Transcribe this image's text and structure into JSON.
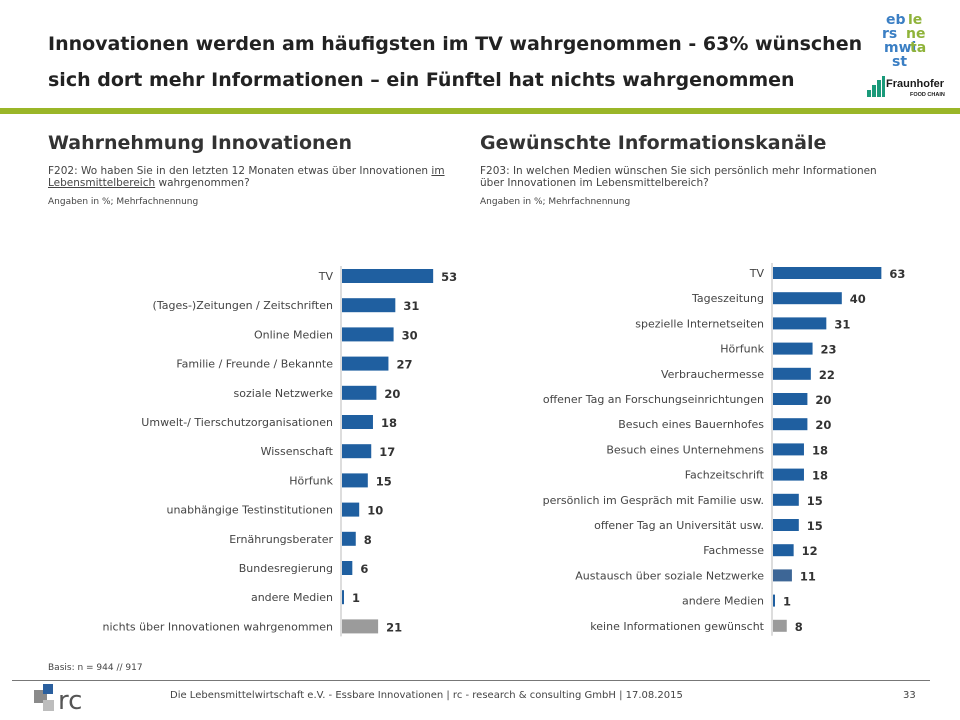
{
  "header": {
    "headline_line1": "Innovationen werden am häufigsten im TV wahrgenommen - 63% wünschen",
    "headline_line2": "sich dort mehr Informationen – ein Fünftel hat nichts wahrgenommen",
    "logo_ebi_lines": [
      "eb",
      "le",
      "rs",
      "ne",
      "mwi",
      "ta",
      "st"
    ],
    "logo_fraunhofer": "Fraunhofer",
    "logo_fraunhofer_sub": "FOOD CHAIN"
  },
  "left": {
    "title": "Wahrnehmung Innovationen",
    "question_pre": "F202: Wo haben Sie in den letzten 12 Monaten etwas über Innovationen ",
    "question_underlined": "im Lebensmittelbereich",
    "question_post": " wahrgenommen?",
    "note": "Angaben in %; Mehrfachnennung"
  },
  "right": {
    "title": "Gewünschte Informationskanäle",
    "question": "F203: In welchen Medien wünschen Sie sich persönlich mehr Informationen über Innovationen im Lebensmittelbereich?",
    "note": "Angaben in %; Mehrfachnennung"
  },
  "chart_data": [
    {
      "type": "bar",
      "orientation": "horizontal",
      "categories": [
        "TV",
        "(Tages-)Zeitungen / Zeitschriften",
        "Online Medien",
        "Familie / Freunde / Bekannte",
        "soziale Netzwerke",
        "Umwelt-/ Tierschutzorganisationen",
        "Wissenschaft",
        "Hörfunk",
        "unabhängige Testinstitutionen",
        "Ernährungsberater",
        "Bundesregierung",
        "andere Medien",
        "nichts über Innovationen wahrgenommen"
      ],
      "values": [
        53,
        31,
        30,
        27,
        20,
        18,
        17,
        15,
        10,
        8,
        6,
        1,
        21
      ],
      "colors": [
        "#1f5fa0",
        "#1f5fa0",
        "#1f5fa0",
        "#1f5fa0",
        "#1f5fa0",
        "#1f5fa0",
        "#1f5fa0",
        "#1f5fa0",
        "#1f5fa0",
        "#1f5fa0",
        "#1f5fa0",
        "#1f5fa0",
        "#9b9b9b"
      ],
      "data_labels": true
    },
    {
      "type": "bar",
      "orientation": "horizontal",
      "categories": [
        "TV",
        "Tageszeitung",
        "spezielle Internetseiten",
        "Hörfunk",
        "Verbrauchermesse",
        "offener Tag an Forschungseinrichtungen",
        "Besuch eines Bauernhofes",
        "Besuch eines Unternehmens",
        "Fachzeitschrift",
        "persönlich im Gespräch mit Familie usw.",
        "offener Tag an Universität usw.",
        "Fachmesse",
        "Austausch über soziale Netzwerke",
        "andere Medien",
        "keine Informationen gewünscht"
      ],
      "values": [
        63,
        40,
        31,
        23,
        22,
        20,
        20,
        18,
        18,
        15,
        15,
        12,
        11,
        1,
        8
      ],
      "colors": [
        "#1f5fa0",
        "#1f5fa0",
        "#1f5fa0",
        "#1f5fa0",
        "#1f5fa0",
        "#1f5fa0",
        "#1f5fa0",
        "#1f5fa0",
        "#1f5fa0",
        "#1f5fa0",
        "#1f5fa0",
        "#1f5fa0",
        "#3d6696",
        "#1f5fa0",
        "#9b9b9b"
      ],
      "data_labels": true
    }
  ],
  "basis": "Basis: n = 944 // 917",
  "footer": {
    "logo_text": "rc",
    "text": "Die Lebensmittelwirtschaft e.V. - Essbare Innovationen | rc - research & consulting GmbH | 17.08.2015",
    "page": "33"
  }
}
